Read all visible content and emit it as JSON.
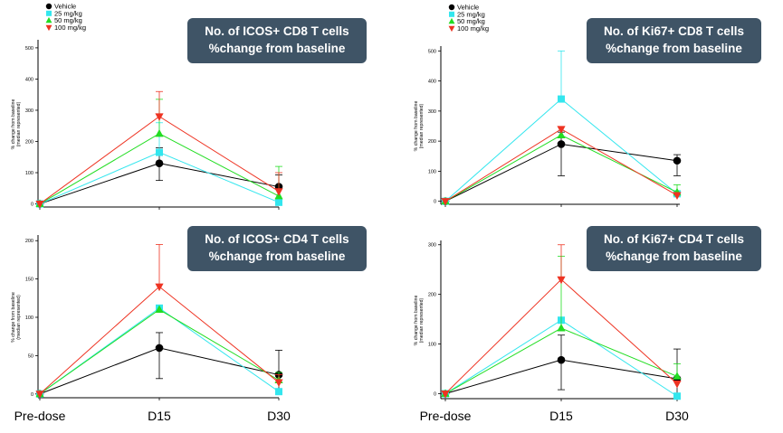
{
  "colors": {
    "Vehicle": "#000000",
    "25 mg/kg": "#33e6ee",
    "50 mg/kg": "#22dd22",
    "100 mg/kg": "#ee3322"
  },
  "x_labels": [
    "Pre-dose",
    "D15",
    "D30"
  ],
  "chart_data": [
    {
      "type": "line",
      "title": [
        "No. of ICOS+ CD8  T cells",
        "%change  from baseline"
      ],
      "ylabel": [
        "% change from baseline",
        "(median represented)"
      ],
      "x": [
        "Pre-dose",
        "D15",
        "D30"
      ],
      "ylim": [
        -10,
        520
      ],
      "yticks": [
        0,
        100,
        200,
        300,
        400,
        500
      ],
      "legend": [
        "Vehicle",
        "25 mg/kg",
        "50 mg/kg",
        "100 mg/kg"
      ],
      "series": [
        {
          "name": "Vehicle",
          "marker": "circle",
          "values": [
            0,
            130,
            55
          ],
          "err_up": [
            0,
            50,
            38
          ],
          "err_down": [
            0,
            55,
            50
          ]
        },
        {
          "name": "25 mg/kg",
          "marker": "square",
          "values": [
            0,
            165,
            5
          ],
          "err_up": [
            0,
            95,
            12
          ],
          "err_down": [
            0,
            0,
            0
          ]
        },
        {
          "name": "50 mg/kg",
          "marker": "triangle-up",
          "values": [
            0,
            225,
            25
          ],
          "err_up": [
            0,
            110,
            95
          ],
          "err_down": [
            0,
            0,
            0
          ]
        },
        {
          "name": "100 mg/kg",
          "marker": "triangle-down",
          "values": [
            0,
            280,
            40
          ],
          "err_up": [
            0,
            80,
            60
          ],
          "err_down": [
            0,
            0,
            0
          ]
        }
      ]
    },
    {
      "type": "line",
      "title": [
        "No. of Ki67+ CD8  T cells",
        "%change  from baseline"
      ],
      "ylabel": [
        "% change from baseline",
        "(median represented)"
      ],
      "x": [
        "Pre-dose",
        "D15",
        "D30"
      ],
      "ylim": [
        -10,
        510
      ],
      "yticks": [
        0,
        100,
        200,
        300,
        400,
        500
      ],
      "legend": [
        "Vehicle",
        "25 mg/kg",
        "50 mg/kg",
        "100 mg/kg"
      ],
      "series": [
        {
          "name": "Vehicle",
          "marker": "circle",
          "values": [
            0,
            190,
            135
          ],
          "err_up": [
            0,
            40,
            20
          ],
          "err_down": [
            0,
            105,
            50
          ]
        },
        {
          "name": "25 mg/kg",
          "marker": "square",
          "values": [
            0,
            340,
            25
          ],
          "err_up": [
            0,
            160,
            0
          ],
          "err_down": [
            0,
            0,
            0
          ]
        },
        {
          "name": "50 mg/kg",
          "marker": "triangle-up",
          "values": [
            0,
            220,
            30
          ],
          "err_up": [
            0,
            0,
            25
          ],
          "err_down": [
            0,
            0,
            0
          ]
        },
        {
          "name": "100 mg/kg",
          "marker": "triangle-down",
          "values": [
            0,
            240,
            20
          ],
          "err_up": [
            0,
            0,
            0
          ],
          "err_down": [
            0,
            0,
            0
          ]
        }
      ]
    },
    {
      "type": "line",
      "title": [
        "No. of ICOS+ CD4  T cells",
        "%change  from baseline"
      ],
      "ylabel": [
        "% change from baseline",
        "(median represented)"
      ],
      "x": [
        "Pre-dose",
        "D15",
        "D30"
      ],
      "ylim": [
        -5,
        205
      ],
      "yticks": [
        0,
        50,
        100,
        150,
        200
      ],
      "series": [
        {
          "name": "Vehicle",
          "marker": "circle",
          "values": [
            0,
            60,
            25
          ],
          "err_up": [
            0,
            20,
            32
          ],
          "err_down": [
            0,
            40,
            25
          ]
        },
        {
          "name": "25 mg/kg",
          "marker": "square",
          "values": [
            0,
            112,
            3
          ],
          "err_up": [
            0,
            0,
            0
          ],
          "err_down": [
            0,
            0,
            0
          ]
        },
        {
          "name": "50 mg/kg",
          "marker": "triangle-up",
          "values": [
            0,
            110,
            18
          ],
          "err_up": [
            0,
            0,
            10
          ],
          "err_down": [
            0,
            0,
            0
          ]
        },
        {
          "name": "100 mg/kg",
          "marker": "triangle-down",
          "values": [
            0,
            140,
            15
          ],
          "err_up": [
            0,
            55,
            10
          ],
          "err_down": [
            0,
            0,
            0
          ]
        }
      ]
    },
    {
      "type": "line",
      "title": [
        "No. of Ki67+ CD4  T cells",
        "%change  from baseline"
      ],
      "ylabel": [
        "% change from baseline",
        "(median represented)"
      ],
      "x": [
        "Pre-dose",
        "D15",
        "D30"
      ],
      "ylim": [
        -10,
        305
      ],
      "yticks": [
        0,
        100,
        200,
        300
      ],
      "series": [
        {
          "name": "Vehicle",
          "marker": "circle",
          "values": [
            0,
            68,
            30
          ],
          "err_up": [
            0,
            50,
            60
          ],
          "err_down": [
            0,
            60,
            35
          ]
        },
        {
          "name": "25 mg/kg",
          "marker": "square",
          "values": [
            0,
            148,
            -5
          ],
          "err_up": [
            0,
            0,
            0
          ],
          "err_down": [
            0,
            0,
            0
          ]
        },
        {
          "name": "50 mg/kg",
          "marker": "triangle-up",
          "values": [
            0,
            132,
            35
          ],
          "err_up": [
            0,
            145,
            25
          ],
          "err_down": [
            0,
            0,
            0
          ]
        },
        {
          "name": "100 mg/kg",
          "marker": "triangle-down",
          "values": [
            0,
            230,
            20
          ],
          "err_up": [
            0,
            70,
            0
          ],
          "err_down": [
            0,
            0,
            0
          ]
        }
      ]
    }
  ]
}
